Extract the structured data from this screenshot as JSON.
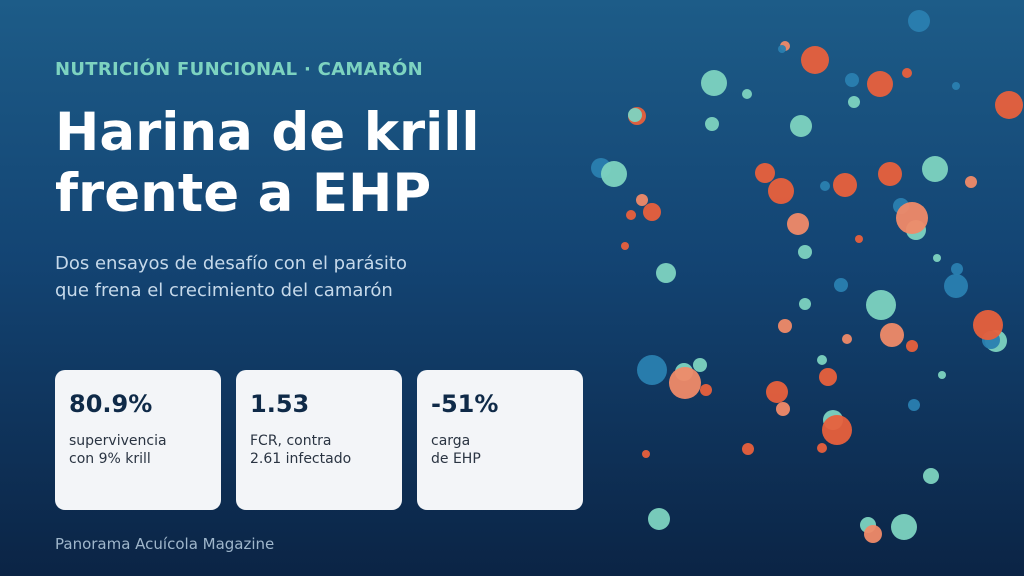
{
  "header": {
    "kicker": "NUTRICIÓN FUNCIONAL · CAMARÓN",
    "title_lines": [
      "Harina de krill",
      "frente a EHP"
    ],
    "subtitle_lines": [
      "Dos ensayos de desafío con el parásito",
      "que frena el crecimiento del camarón"
    ]
  },
  "stats": [
    {
      "value": "80.9%",
      "label_lines": [
        "supervivencia",
        "con 9% krill"
      ]
    },
    {
      "value": "1.53",
      "label_lines": [
        "FCR, contra",
        "2.61 infectado"
      ]
    },
    {
      "value": "-51%",
      "label_lines": [
        "carga",
        "de EHP"
      ]
    }
  ],
  "footer": {
    "source": "Panorama Acuícola Magazine"
  }
}
